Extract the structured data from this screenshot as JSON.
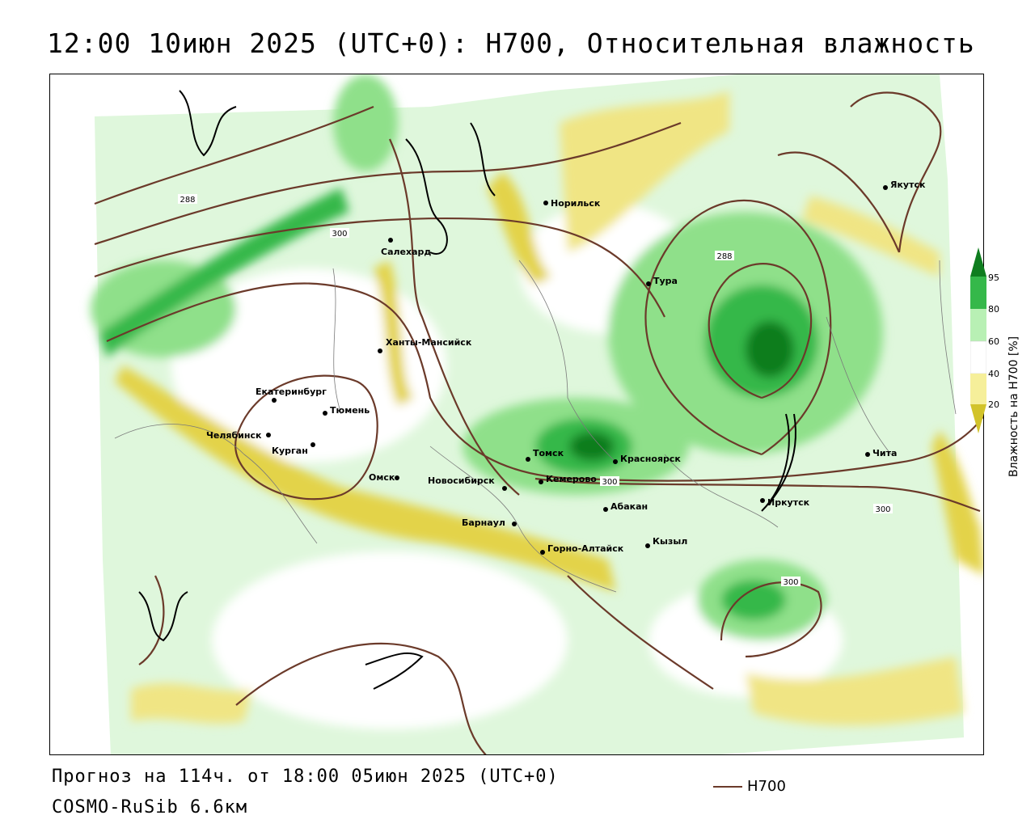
{
  "title": "12:00 10июн 2025 (UTC+0): H700, Относительная влажность",
  "footer": {
    "forecast": "Прогноз на 114ч. от 18:00 05июн 2025 (UTC+0)",
    "model": "COSMO-RuSib 6.6км",
    "line_legend": "H700"
  },
  "colorbar": {
    "title": "Влажность на H700 [%]",
    "ticks": [
      "95",
      "80",
      "60",
      "40",
      "20"
    ],
    "colors": {
      "c95": "#0f7d1f",
      "c80": "#35b84a",
      "c60": "#b8f0b4",
      "c40": "#ffffff",
      "c20": "#f6ef9a",
      "c0": "#d2c32a"
    }
  },
  "isohypse_labels": [
    "288",
    "300",
    "288",
    "300",
    "300",
    "300"
  ],
  "cities": [
    "Норильск",
    "Якутск",
    "Салехард",
    "Тура",
    "Ханты-Мансийск",
    "Екатеринбург",
    "Тюмень",
    "Челябинск",
    "Курган",
    "Омск",
    "Новосибирск",
    "Томск",
    "Кемерово",
    "Красноярск",
    "Абакан",
    "Барнаул",
    "Горно-Алтайск",
    "Кызыл",
    "Иркутск",
    "Чита"
  ]
}
